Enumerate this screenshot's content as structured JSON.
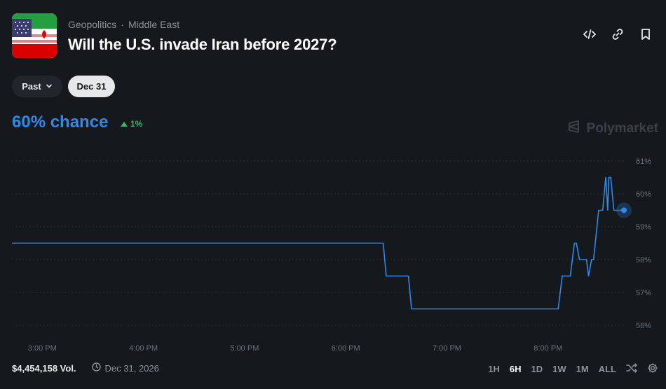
{
  "header": {
    "breadcrumb": [
      "Geopolitics",
      "·",
      "Middle East"
    ],
    "title": "Will the U.S. invade Iran before 2027?",
    "actions": [
      "embed-icon",
      "link-icon",
      "bookmark-icon"
    ]
  },
  "filters": {
    "past_label": "Past",
    "date_label": "Dec 31"
  },
  "stats": {
    "chance": "60% chance",
    "change": "1%",
    "brand": "Polymarket"
  },
  "chart_data": {
    "type": "line",
    "x_labels": [
      "3:00 PM",
      "4:00 PM",
      "5:00 PM",
      "6:00 PM",
      "7:00 PM",
      "8:00 PM"
    ],
    "y_ticks": [
      "61%",
      "60%",
      "59%",
      "58%",
      "57%",
      "56%"
    ],
    "ylim": [
      56,
      61
    ],
    "xlim": [
      14.7,
      20.75
    ],
    "grid": true,
    "color": "#2d8ae8",
    "series": [
      {
        "values": [
          [
            14.7,
            58.5
          ],
          [
            18.37,
            58.5
          ],
          [
            18.4,
            57.5
          ],
          [
            18.62,
            57.5
          ],
          [
            18.65,
            56.5
          ],
          [
            20.1,
            56.5
          ],
          [
            20.14,
            57.5
          ],
          [
            20.22,
            57.5
          ],
          [
            20.26,
            58.5
          ],
          [
            20.28,
            58.5
          ],
          [
            20.31,
            58.0
          ],
          [
            20.38,
            58.0
          ],
          [
            20.4,
            57.5
          ],
          [
            20.43,
            58.0
          ],
          [
            20.45,
            58.0
          ],
          [
            20.5,
            59.5
          ],
          [
            20.54,
            59.5
          ],
          [
            20.57,
            60.5
          ],
          [
            20.59,
            59.5
          ],
          [
            20.6,
            60.5
          ],
          [
            20.62,
            60.5
          ],
          [
            20.65,
            59.5
          ],
          [
            20.75,
            59.5
          ]
        ]
      }
    ]
  },
  "footer": {
    "volume": "$4,454,158 Vol.",
    "end_date": "Dec 31, 2026",
    "ranges": [
      "1H",
      "6H",
      "1D",
      "1W",
      "1M",
      "ALL"
    ],
    "active_range": "6H"
  }
}
